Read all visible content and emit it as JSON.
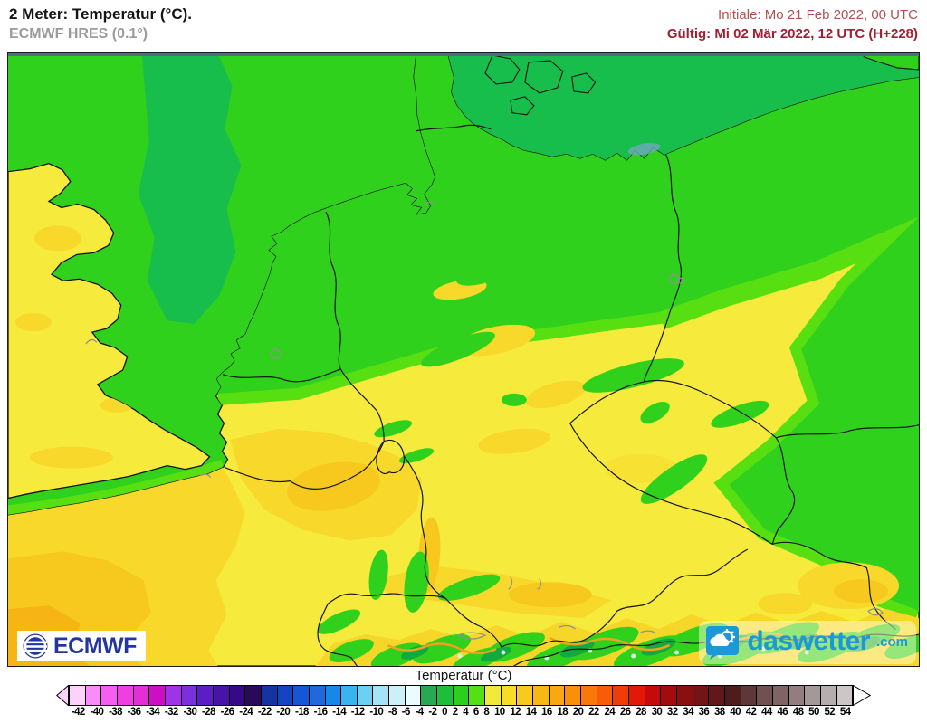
{
  "header": {
    "title": "2 Meter: Temperatur (°C).",
    "subtitle": "ECMWF HRES (0.1°)",
    "init_label": "Initiale: Mo 21 Feb 2022, 00 UTC",
    "valid_label": "Gültig: Mi 02 Mär 2022, 12 UTC (H+228)"
  },
  "logos": {
    "ecmwf_text": "ECMWF",
    "brand_text": "daswetter",
    "brand_suffix": ".com"
  },
  "legend": {
    "title": "Temperatur (°C)",
    "values": [
      "-42",
      "-40",
      "-38",
      "-36",
      "-34",
      "-32",
      "-30",
      "-28",
      "-26",
      "-24",
      "-22",
      "-20",
      "-18",
      "-16",
      "-14",
      "-12",
      "-10",
      "-8",
      "-6",
      "-4",
      "-2",
      "0",
      "2",
      "4",
      "6",
      "8",
      "10",
      "12",
      "14",
      "16",
      "18",
      "20",
      "22",
      "24",
      "26",
      "28",
      "30",
      "32",
      "34",
      "36",
      "38",
      "40",
      "42",
      "44",
      "46",
      "48",
      "50",
      "52",
      "54"
    ],
    "colors": [
      "#FAD2FA",
      "#FA8CFA",
      "#F55FF0",
      "#EE3FE3",
      "#E42ED6",
      "#CC0FC4",
      "#A032E8",
      "#7C30DC",
      "#5C1EC4",
      "#4814A8",
      "#360A84",
      "#2A0A58",
      "#1434A4",
      "#1444C0",
      "#1656D4",
      "#2068DC",
      "#1888E8",
      "#38B4F0",
      "#6CD0F4",
      "#A4E4F8",
      "#CCF0F8",
      "#ECFCFC",
      "#28A850",
      "#1EBE3C",
      "#2BD01E",
      "#55E014",
      "#F2EA38",
      "#F8DC28",
      "#F8CA1E",
      "#F8B814",
      "#F8A810",
      "#F89008",
      "#F87808",
      "#F85C08",
      "#F03C08",
      "#E41808",
      "#C40A0A",
      "#A40C0C",
      "#8A1010",
      "#741414",
      "#601818",
      "#4E1C1C",
      "#5E3838",
      "#705050",
      "#806464",
      "#927E7E",
      "#A49898",
      "#B6AEAE",
      "#CCC6C6"
    ],
    "left_arrow_color": "#FAD2FA",
    "right_arrow_color": "#FFFFFF"
  }
}
